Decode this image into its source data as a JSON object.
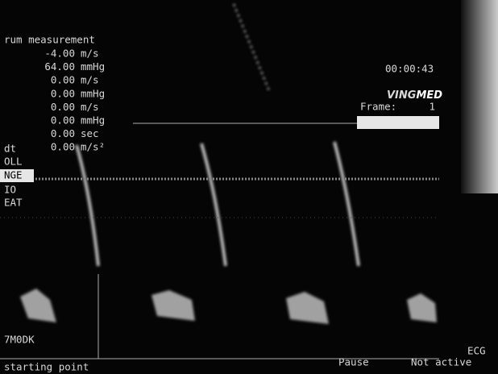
{
  "measurement": {
    "title": "rum measurement",
    "rows": [
      {
        "value": "-4.00",
        "unit": "m/s"
      },
      {
        "value": "64.00",
        "unit": "mmHg"
      },
      {
        "value": "0.00",
        "unit": "m/s"
      },
      {
        "value": "0.00",
        "unit": "mmHg"
      },
      {
        "value": "0.00",
        "unit": "m/s"
      },
      {
        "value": "0.00",
        "unit": "mmHg"
      },
      {
        "value": "0.00",
        "unit": "sec"
      },
      {
        "value": "0.00",
        "unit": "m/s²"
      }
    ]
  },
  "menu": [
    "dt",
    "OLL",
    "NGE",
    "IO",
    "EAT"
  ],
  "clock": "00:00:43",
  "brand": {
    "part1": "VING",
    "part2": "MED"
  },
  "frame": {
    "label": "Frame:",
    "value": "1"
  },
  "mode": "7M0DK",
  "status": {
    "left": "starting point",
    "pause": "Pause",
    "active": "Not active",
    "ecg": "ECG"
  }
}
